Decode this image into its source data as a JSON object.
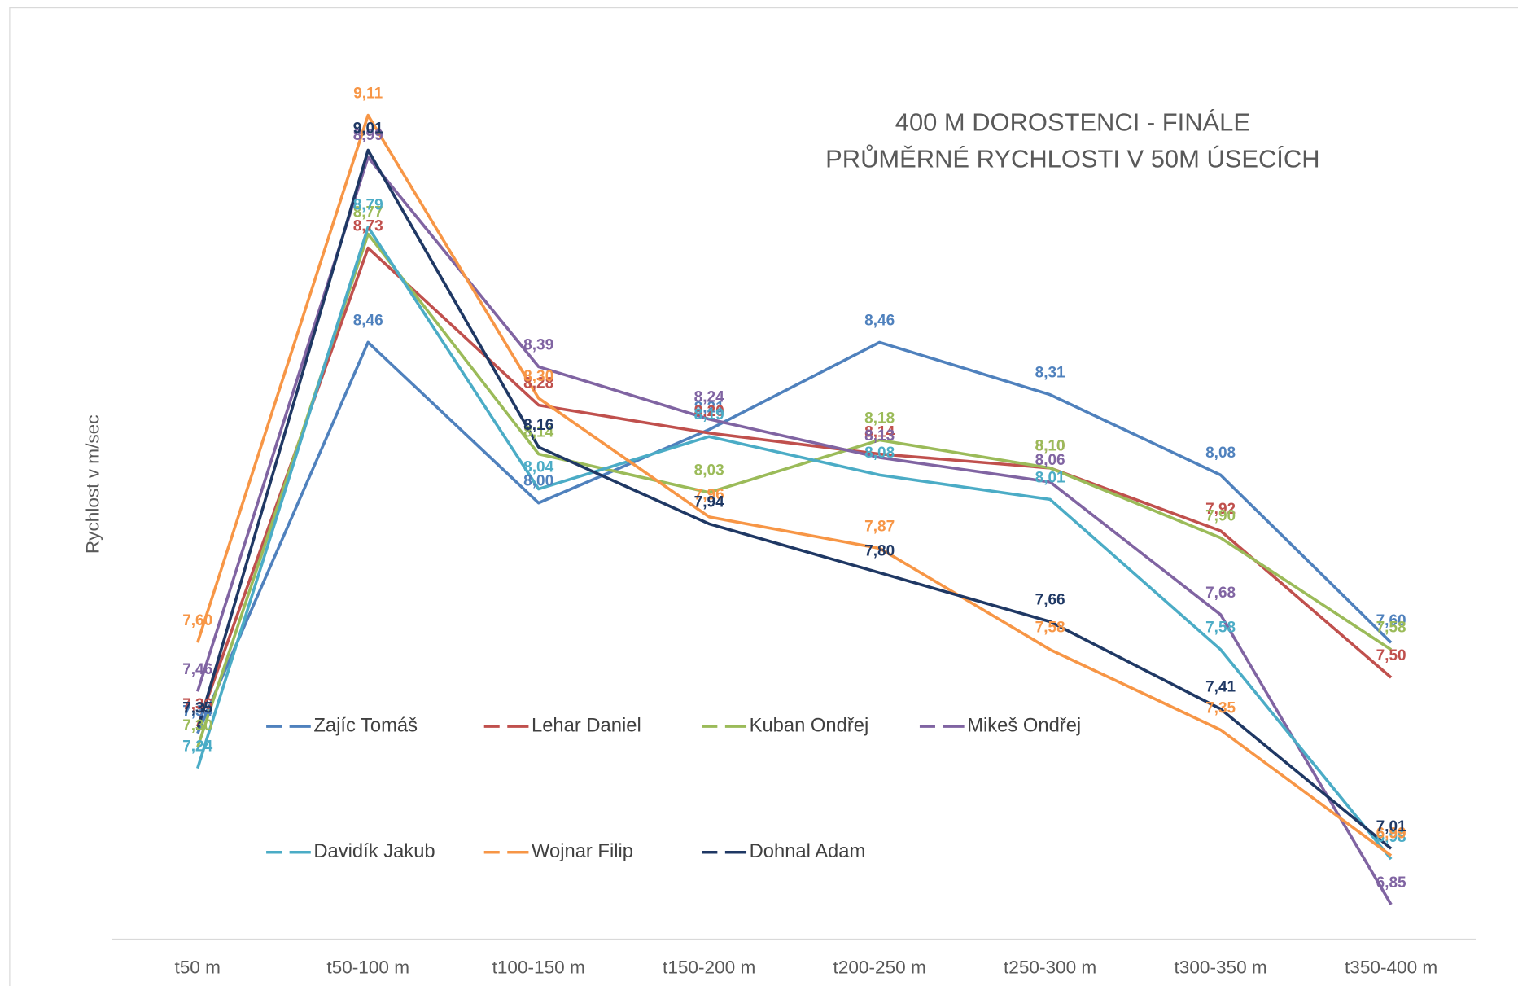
{
  "chart_data": {
    "type": "line",
    "title": "400 M DOROSTENCI - FINÁLE",
    "subtitle": "PRŮMĚRNÉ RYCHLOSTI V 50M ÚSECÍCH",
    "y_label": "Rychlost v m/sec",
    "categories": [
      "t50 m",
      "t50-100 m",
      "t100-150 m",
      "t150-200 m",
      "t200-250 m",
      "t250-300 m",
      "t300-350 m",
      "t350-400 m"
    ],
    "ylim": [
      6.75,
      9.25
    ],
    "series": [
      {
        "name": "Zajíc Tomáš",
        "color": "#4f81bd",
        "values": [
          7.34,
          8.46,
          8.0,
          8.21,
          8.46,
          8.31,
          8.08,
          7.6
        ],
        "value_labels": [
          "7,34",
          "8,46",
          "8,00",
          "8,21",
          "8,46",
          "8,31",
          "8,08",
          "7,60"
        ]
      },
      {
        "name": "Lehar Daniel",
        "color": "#c0504d",
        "values": [
          7.36,
          8.73,
          8.28,
          8.2,
          8.14,
          8.1,
          7.92,
          7.5
        ],
        "value_labels": [
          "7,36",
          "8,73",
          "8,28",
          "8,20",
          "8,14",
          "8,10",
          "7,92",
          "7,50"
        ]
      },
      {
        "name": "Kuban Ondřej",
        "color": "#9bbb59",
        "values": [
          7.3,
          8.77,
          8.14,
          8.03,
          8.18,
          8.1,
          7.9,
          7.58
        ],
        "value_labels": [
          "7,30",
          "8,77",
          "8,14",
          "8,03",
          "8,18",
          "8,10",
          "7,90",
          "7,58"
        ]
      },
      {
        "name": "Mikeš Ondřej",
        "color": "#8064a2",
        "values": [
          7.46,
          8.99,
          8.39,
          8.24,
          8.13,
          8.06,
          7.68,
          6.85
        ],
        "value_labels": [
          "7,46",
          "8,99",
          "8,39",
          "8,24",
          "8,13",
          "8,06",
          "7,68",
          "6,85"
        ]
      },
      {
        "name": "Davidík Jakub",
        "color": "#4bacc6",
        "values": [
          7.24,
          8.79,
          8.04,
          8.19,
          8.08,
          8.01,
          7.58,
          6.98
        ],
        "value_labels": [
          "7,24",
          "8,79",
          "8,04",
          "8,19",
          "8,08",
          "8,01",
          "7,58",
          "6,98"
        ]
      },
      {
        "name": "Wojnar Filip",
        "color": "#f79646",
        "values": [
          7.6,
          9.11,
          8.3,
          7.96,
          7.87,
          7.58,
          7.35,
          6.99
        ],
        "value_labels": [
          "7,60",
          "9,11",
          "8,30",
          "7,96",
          "7,87",
          "7,58",
          "7,35",
          "6,99"
        ]
      },
      {
        "name": "Dohnal Adam",
        "color": "#1f3864",
        "values": [
          7.35,
          9.01,
          8.16,
          7.94,
          7.8,
          7.66,
          7.41,
          7.01
        ],
        "value_labels": [
          "7,35",
          "9,01",
          "8,16",
          "7,94",
          "7,80",
          "7,66",
          "7,41",
          "7,01"
        ]
      }
    ]
  }
}
